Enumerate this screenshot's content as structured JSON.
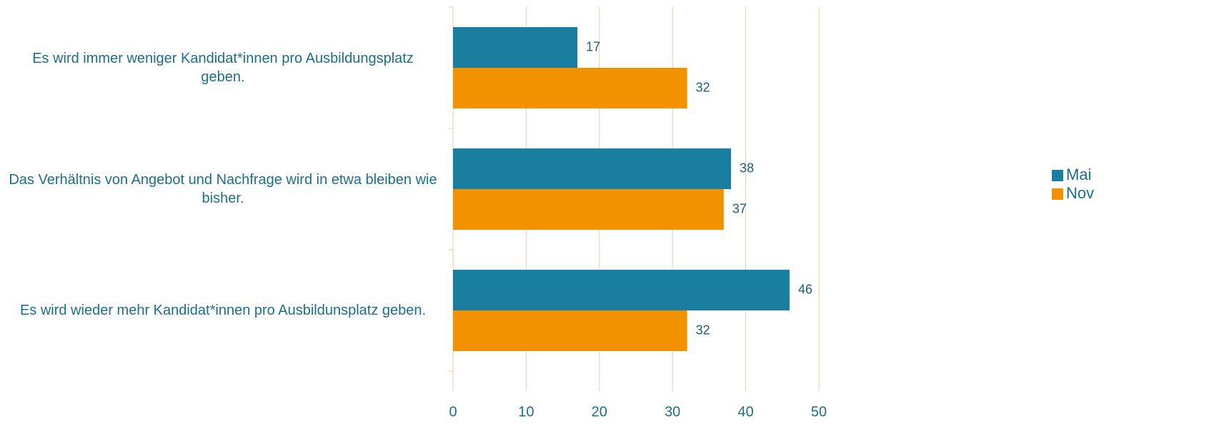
{
  "chart_data": {
    "type": "bar",
    "orientation": "horizontal",
    "categories": [
      "Es wird immer weniger Kandidat*innen pro Ausbildungsplatz geben.",
      "Das Verhältnis von Angebot und Nachfrage wird in etwa bleiben wie bisher.",
      "Es wird wieder mehr Kandidat*innen pro Ausbildunsplatz geben."
    ],
    "series": [
      {
        "name": "Mai",
        "color": "#1a7ea0",
        "values": [
          17,
          38,
          46
        ]
      },
      {
        "name": "Nov",
        "color": "#f39200",
        "values": [
          32,
          37,
          32
        ]
      }
    ],
    "xlim": [
      0,
      50
    ],
    "xticks": [
      0,
      10,
      20,
      30,
      40,
      50
    ],
    "grid": true,
    "legend": "right"
  }
}
